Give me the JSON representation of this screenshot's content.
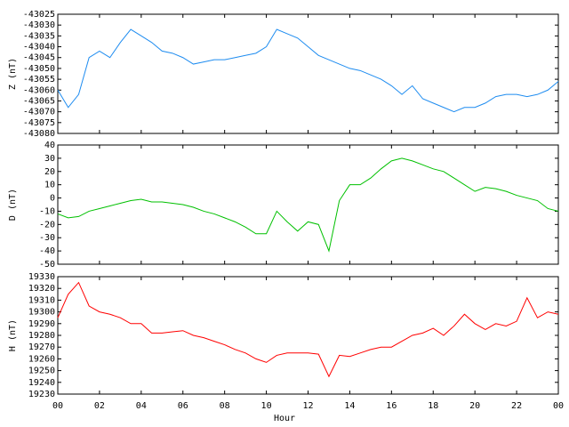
{
  "chart_data": [
    {
      "type": "line",
      "ylabel": "Z (nT)",
      "xlim": [
        0,
        24
      ],
      "ylim": [
        -43080,
        -43025
      ],
      "yticks": [
        -43025,
        -43030,
        -43035,
        -43040,
        -43045,
        -43050,
        -43055,
        -43060,
        -43065,
        -43070,
        -43075,
        -43080
      ],
      "x": [
        0,
        0.5,
        1,
        1.5,
        2,
        2.5,
        3,
        3.5,
        4,
        4.5,
        5,
        5.5,
        6,
        6.5,
        7,
        7.5,
        8,
        8.5,
        9,
        9.5,
        10,
        10.5,
        11,
        11.5,
        12,
        12.5,
        13,
        13.5,
        14,
        14.5,
        15,
        15.5,
        16,
        16.5,
        17,
        17.5,
        18,
        18.5,
        19,
        19.5,
        20,
        20.5,
        21,
        21.5,
        22,
        22.5,
        23,
        23.5,
        24
      ],
      "series": [
        {
          "color": "#1e8cf0",
          "values": [
            -43060,
            -43068,
            -43062,
            -43045,
            -43042,
            -43045,
            -43038,
            -43032,
            -43035,
            -43038,
            -43042,
            -43043,
            -43045,
            -43048,
            -43047,
            -43046,
            -43046,
            -43045,
            -43044,
            -43043,
            -43040,
            -43032,
            -43034,
            -43036,
            -43040,
            -43044,
            -43046,
            -43048,
            -43050,
            -43051,
            -43053,
            -43055,
            -43058,
            -43062,
            -43058,
            -43064,
            -43066,
            -43068,
            -43070,
            -43068,
            -43068,
            -43066,
            -43063,
            -43062,
            -43062,
            -43063,
            -43062,
            -43060,
            -43056
          ]
        }
      ]
    },
    {
      "type": "line",
      "ylabel": "D (nT)",
      "xlim": [
        0,
        24
      ],
      "ylim": [
        -50,
        40
      ],
      "yticks": [
        40,
        30,
        20,
        10,
        0,
        -10,
        -20,
        -30,
        -40,
        -50
      ],
      "x": [
        0,
        0.5,
        1,
        1.5,
        2,
        2.5,
        3,
        3.5,
        4,
        4.5,
        5,
        5.5,
        6,
        6.5,
        7,
        7.5,
        8,
        8.5,
        9,
        9.5,
        10,
        10.5,
        11,
        11.5,
        12,
        12.5,
        13,
        13.5,
        14,
        14.5,
        15,
        15.5,
        16,
        16.5,
        17,
        17.5,
        18,
        18.5,
        19,
        19.5,
        20,
        20.5,
        21,
        21.5,
        22,
        22.5,
        23,
        23.5,
        24
      ],
      "series": [
        {
          "color": "#00c000",
          "values": [
            -12,
            -15,
            -14,
            -10,
            -8,
            -6,
            -4,
            -2,
            -1,
            -3,
            -3,
            -4,
            -5,
            -7,
            -10,
            -12,
            -15,
            -18,
            -22,
            -27,
            -27,
            -10,
            -18,
            -25,
            -18,
            -20,
            -40,
            -2,
            10,
            10,
            15,
            22,
            28,
            30,
            28,
            25,
            22,
            20,
            15,
            10,
            5,
            8,
            7,
            5,
            2,
            0,
            -2,
            -8,
            -10
          ]
        }
      ]
    },
    {
      "type": "line",
      "ylabel": "H (nT)",
      "xlabel": "Hour",
      "xlim": [
        0,
        24
      ],
      "ylim": [
        19230,
        19330
      ],
      "yticks": [
        19330,
        19320,
        19310,
        19300,
        19290,
        19280,
        19270,
        19260,
        19250,
        19240,
        19230
      ],
      "xticks": [
        {
          "value": 0,
          "label": "00"
        },
        {
          "value": 2,
          "label": "02"
        },
        {
          "value": 4,
          "label": "04"
        },
        {
          "value": 6,
          "label": "06"
        },
        {
          "value": 8,
          "label": "08"
        },
        10,
        12,
        14,
        16,
        18,
        20,
        22,
        {
          "value": 24,
          "label": "00"
        }
      ],
      "x": [
        0,
        0.5,
        1,
        1.5,
        2,
        2.5,
        3,
        3.5,
        4,
        4.5,
        5,
        5.5,
        6,
        6.5,
        7,
        7.5,
        8,
        8.5,
        9,
        9.5,
        10,
        10.5,
        11,
        11.5,
        12,
        12.5,
        13,
        13.5,
        14,
        14.5,
        15,
        15.5,
        16,
        16.5,
        17,
        17.5,
        18,
        18.5,
        19,
        19.5,
        20,
        20.5,
        21,
        21.5,
        22,
        22.5,
        23,
        23.5,
        24
      ],
      "series": [
        {
          "color": "#ff0000",
          "values": [
            19295,
            19315,
            19325,
            19305,
            19300,
            19298,
            19295,
            19290,
            19290,
            19282,
            19282,
            19283,
            19284,
            19280,
            19278,
            19275,
            19272,
            19268,
            19265,
            19260,
            19257,
            19263,
            19265,
            19265,
            19265,
            19264,
            19245,
            19263,
            19262,
            19265,
            19268,
            19270,
            19270,
            19275,
            19280,
            19282,
            19286,
            19280,
            19288,
            19298,
            19290,
            19285,
            19290,
            19288,
            19292,
            19312,
            19295,
            19300,
            19298
          ]
        }
      ]
    }
  ]
}
